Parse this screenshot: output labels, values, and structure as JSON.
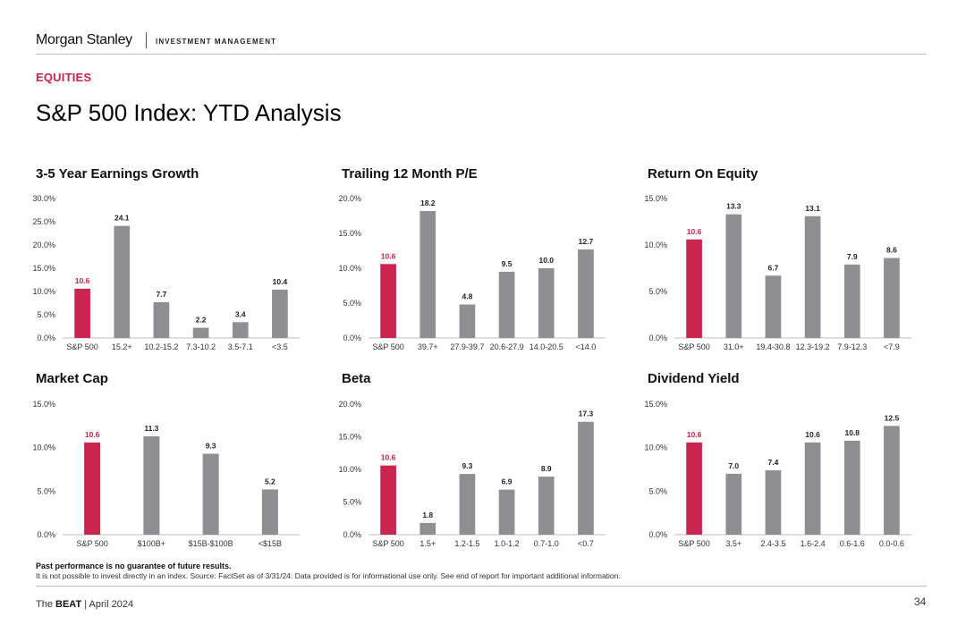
{
  "header": {
    "brand": "Morgan Stanley",
    "division": "INVESTMENT MANAGEMENT"
  },
  "section_label": "EQUITIES",
  "page_title": "S&P 500 Index: YTD Analysis",
  "colors": {
    "highlight": "#c8254f",
    "bar": "#8e8e93",
    "axis": "#bfbfbf",
    "accent_text": "#c8254f"
  },
  "chart_data": [
    {
      "type": "bar",
      "title": "3-5 Year Earnings Growth",
      "categories": [
        "S&P 500",
        "15.2+",
        "10.2-15.2",
        "7.3-10.2",
        "3.5-7.1",
        "<3.5"
      ],
      "values": [
        10.6,
        24.1,
        7.7,
        2.2,
        3.4,
        10.4
      ],
      "value_labels": [
        "10.6",
        "24.1",
        "7.7",
        "2.2",
        "3.4",
        "10.4"
      ],
      "yticks": [
        "0.0%",
        "5.0%",
        "10.0%",
        "15.0%",
        "20.0%",
        "25.0%",
        "30.0%"
      ],
      "ylim": [
        0,
        30
      ],
      "highlight_index": 0
    },
    {
      "type": "bar",
      "title": "Trailing 12 Month P/E",
      "categories": [
        "S&P 500",
        "39.7+",
        "27.9-39.7",
        "20.6-27.9",
        "14.0-20.5",
        "<14.0"
      ],
      "values": [
        10.6,
        18.2,
        4.8,
        9.5,
        10.0,
        12.7
      ],
      "value_labels": [
        "10.6",
        "18.2",
        "4.8",
        "9.5",
        "10.0",
        "12.7"
      ],
      "yticks": [
        "0.0%",
        "5.0%",
        "10.0%",
        "15.0%",
        "20.0%"
      ],
      "ylim": [
        0,
        20
      ],
      "highlight_index": 0
    },
    {
      "type": "bar",
      "title": "Return On Equity",
      "categories": [
        "S&P 500",
        "31.0+",
        "19.4-30.8",
        "12.3-19.2",
        "7.9-12.3",
        "<7.9"
      ],
      "values": [
        10.6,
        13.3,
        6.7,
        13.1,
        7.9,
        8.6
      ],
      "value_labels": [
        "10.6",
        "13.3",
        "6.7",
        "13.1",
        "7.9",
        "8.6"
      ],
      "yticks": [
        "0.0%",
        "5.0%",
        "10.0%",
        "15.0%"
      ],
      "ylim": [
        0,
        15
      ],
      "highlight_index": 0
    },
    {
      "type": "bar",
      "title": "Market Cap",
      "categories": [
        "S&P 500",
        "$100B+",
        "$15B-$100B",
        "<$15B"
      ],
      "values": [
        10.6,
        11.3,
        9.3,
        5.2
      ],
      "value_labels": [
        "10.6",
        "11.3",
        "9.3",
        "5.2"
      ],
      "yticks": [
        "0.0%",
        "5.0%",
        "10.0%",
        "15.0%"
      ],
      "ylim": [
        0,
        15
      ],
      "highlight_index": 0
    },
    {
      "type": "bar",
      "title": "Beta",
      "categories": [
        "S&P 500",
        "1.5+",
        "1.2-1.5",
        "1.0-1.2",
        "0.7-1.0",
        "<0.7"
      ],
      "values": [
        10.6,
        1.8,
        9.3,
        6.9,
        8.9,
        17.3
      ],
      "value_labels": [
        "10.6",
        "1.8",
        "9.3",
        "6.9",
        "8.9",
        "17.3"
      ],
      "yticks": [
        "0.0%",
        "5.0%",
        "10.0%",
        "15.0%",
        "20.0%"
      ],
      "ylim": [
        0,
        20
      ],
      "highlight_index": 0
    },
    {
      "type": "bar",
      "title": "Dividend Yield",
      "categories": [
        "S&P 500",
        "3.5+",
        "2.4-3.5",
        "1.6-2.4",
        "0.6-1.6",
        "0.0-0.6"
      ],
      "values": [
        10.6,
        7.0,
        7.4,
        10.6,
        10.8,
        12.5
      ],
      "value_labels": [
        "10.6",
        "7.0",
        "7.4",
        "10.6",
        "10.8",
        "12.5"
      ],
      "yticks": [
        "0.0%",
        "5.0%",
        "10.0%",
        "15.0%"
      ],
      "ylim": [
        0,
        15
      ],
      "highlight_index": 0
    }
  ],
  "disclaimer": {
    "bold": "Past performance is no guarantee of future results.",
    "text": "It is not possible to invest directly in an index. Source: FactSet as of 3/31/24. Data provided is for informational use only. See end of report for important additional information."
  },
  "footer": {
    "publication_prefix": "The",
    "publication_name": "BEAT",
    "separator": "|",
    "date": "April 2024",
    "page_number": "34"
  }
}
